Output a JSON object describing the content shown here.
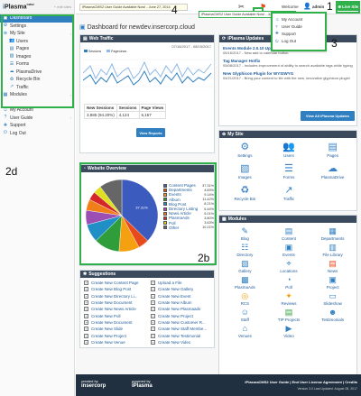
{
  "app": {
    "logo_prefix": "i",
    "logo_main": "Plasma",
    "logo_sup": "CMS2",
    "site_selector": "+ edit sites"
  },
  "sidebar": {
    "items": [
      {
        "label": "Dashboard",
        "icon": "dashboard-icon",
        "active": true
      },
      {
        "label": "Settings",
        "icon": "gear-icon"
      },
      {
        "label": "My Site",
        "icon": "globe-icon",
        "expandable": true
      },
      {
        "label": "Users",
        "icon": "users-icon",
        "sub": true
      },
      {
        "label": "Pages",
        "icon": "pages-icon",
        "sub": true
      },
      {
        "label": "Images",
        "icon": "image-icon",
        "sub": true
      },
      {
        "label": "Forms",
        "icon": "forms-icon",
        "sub": true
      },
      {
        "label": "PlasmaDrive",
        "icon": "drive-icon",
        "sub": true
      },
      {
        "label": "Recycle Bin",
        "icon": "recycle-icon",
        "sub": true
      },
      {
        "label": "Traffic",
        "icon": "traffic-icon",
        "sub": true
      },
      {
        "label": "Modules",
        "icon": "modules-icon",
        "expandable": true
      },
      {
        "label": "My Account",
        "icon": "account-icon"
      },
      {
        "label": "User Guide",
        "icon": "guide-icon",
        "expandable": true
      },
      {
        "label": "Support",
        "icon": "support-icon"
      },
      {
        "label": "Log Out",
        "icon": "logout-icon"
      }
    ]
  },
  "topbar": {
    "announcement": "iPlasmaCMS2 User Guide Available Now! - June 27, 2014",
    "announcement2": "iPlasmaCMS2 User Guide Available Now! - June 27, 2014",
    "welcome": "Welcome",
    "username": "admin",
    "live_site": "Live Site",
    "notif_count": "1"
  },
  "user_menu": {
    "items": [
      "My Account",
      "User Guide",
      "Support",
      "Log Out"
    ]
  },
  "dashboard": {
    "title": "Dashboard for newdev.insercorp.cloud"
  },
  "web_traffic": {
    "title": "Web Traffic",
    "date_range": "07/16/2017 - 08/15/2017",
    "legend_sessions": "Sessions",
    "legend_pageviews": "Pageviews",
    "table_headers": [
      "New Sessions",
      "Sessions",
      "Page Views"
    ],
    "table_values": [
      "3,885 (94.20%)",
      "4,124",
      "5,157"
    ],
    "button": "View Reports"
  },
  "chart_data": {
    "type": "pie",
    "title": "Website Overview",
    "categories": [
      "Content Pages",
      "Departments",
      "Events",
      "Album",
      "Blog Post",
      "Directory Listing",
      "News Article",
      "PlasmaAds",
      "Poll",
      "Other"
    ],
    "values": [
      37.31,
      4.83,
      9.14,
      11.42,
      8.21,
      6.44,
      5.01,
      3.8,
      3.63,
      10.21
    ],
    "colors": [
      "#3b5bbf",
      "#e84a1b",
      "#f5a010",
      "#2f9e3a",
      "#1f8fc6",
      "#9b4fb4",
      "#f07f1a",
      "#d62728",
      "#e0e020",
      "#666666"
    ]
  },
  "legend_pct": [
    "37.31%",
    "4.83%",
    "9.14%",
    "11.42%",
    "8.21%",
    "6.44%",
    "5.01%",
    "3.80%",
    "3.63%",
    "10.21%"
  ],
  "suggestions": {
    "title": "Suggestions",
    "left": [
      "Create New Content Page",
      "Create New Blog Post",
      "Create New Directory Li...",
      "Create New Document",
      "Create New News Article",
      "Create New Poll",
      "Create New Document",
      "Create New Slide",
      "Create New Project",
      "Create New Venue"
    ],
    "right": [
      "Upload a File",
      "Create New Gallery",
      "Create New Event",
      "Create New Album",
      "Create New Plasmaads",
      "Create New Project",
      "Create New Customer R...",
      "Create New Staff Membe...",
      "Create New Testimonial",
      "Create New Video"
    ]
  },
  "updates": {
    "title": "iPlasma Updates",
    "entries": [
      {
        "title": "Events Module 2.0.10 Update",
        "date": "05/16/2017",
        "text": "New add to calendar button"
      },
      {
        "title": "Tag Manager Hotfix",
        "date": "05/08/2017",
        "text": "Includes improvement of ability to search available tags while typing"
      },
      {
        "title": "New Glyphicon Plugin for WYSIWYG",
        "date": "04/21/2017",
        "text": "Bring your content to life with the new, innovative glyphicon plugin!"
      }
    ],
    "button": "View All iPlasma Updates"
  },
  "my_site": {
    "title": "My Site",
    "items": [
      {
        "label": "Settings",
        "icon": "gear-icon"
      },
      {
        "label": "Users",
        "icon": "users-icon"
      },
      {
        "label": "Pages",
        "icon": "pages-icon"
      },
      {
        "label": "Images",
        "icon": "image-icon"
      },
      {
        "label": "Forms",
        "icon": "forms-icon"
      },
      {
        "label": "PlasmaDrive",
        "icon": "drive-icon"
      },
      {
        "label": "Recycle Bin",
        "icon": "recycle-icon"
      },
      {
        "label": "Traffic",
        "icon": "traffic-icon"
      }
    ]
  },
  "modules": {
    "title": "Modules",
    "items": [
      "Blog",
      "Content",
      "Departments",
      "Directory",
      "Events",
      "File Library",
      "Gallery",
      "Locations",
      "News",
      "PlasmaAds",
      "Poll",
      "Project",
      "RCS",
      "Reviews",
      "Slideshow",
      "Staff",
      "TIP Projects",
      "Testimonials",
      "Venues",
      "Video"
    ]
  },
  "footer": {
    "created_by": "created by",
    "powered_by": "powered by",
    "version_text": "iPlasmaCMS2 User Guide | End User License Agreement | Credits",
    "version_sub": "Version 3.0 Last Updated: August 08, 2017"
  },
  "callouts": {
    "one": "1",
    "two_b": "2b",
    "two_d": "2d",
    "three": "3",
    "four": "4"
  },
  "colors": {
    "accent": "#2f7fc1",
    "header": "#3a4a5c",
    "highlight": "#2fb04a",
    "live_site": "#2fb04a"
  }
}
